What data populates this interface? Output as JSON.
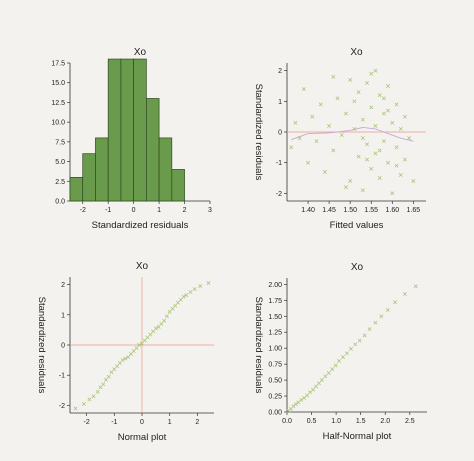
{
  "chart_data": [
    {
      "type": "bar",
      "title": "Xo",
      "xlabel": "Standardized residuals",
      "ylabel": "",
      "xlim": [
        -2.5,
        3
      ],
      "ylim": [
        0,
        17.5
      ],
      "xticks": [
        -2,
        -1,
        0,
        1,
        2,
        3
      ],
      "yticks": [
        0.0,
        2.5,
        5.0,
        7.5,
        10.0,
        12.5,
        15.0,
        17.5
      ],
      "ytick_labels": [
        "0.0",
        "2.5",
        "5.0",
        "7.5",
        "10.0",
        "12.5",
        "15.0",
        "17.5"
      ],
      "bins": [
        [
          -2.5,
          -2.0
        ],
        [
          -2.0,
          -1.5
        ],
        [
          -1.5,
          -1.0
        ],
        [
          -1.0,
          -0.5
        ],
        [
          -0.5,
          0.0
        ],
        [
          0.0,
          0.5
        ],
        [
          0.5,
          1.0
        ],
        [
          1.0,
          1.5
        ],
        [
          1.5,
          2.0
        ]
      ],
      "values": [
        3,
        6,
        8,
        18,
        18,
        18,
        13,
        8,
        4
      ],
      "bar_color": "#6a9a4c"
    },
    {
      "type": "scatter",
      "title": "Xo",
      "xlabel": "Fitted values",
      "ylabel": "Standardized residuals",
      "xlim": [
        1.35,
        1.68
      ],
      "ylim": [
        -2.25,
        2.25
      ],
      "xticks": [
        1.4,
        1.45,
        1.5,
        1.55,
        1.6,
        1.65
      ],
      "xtick_labels": [
        "1.40",
        "1.45",
        "1.50",
        "1.55",
        "1.60",
        "1.65"
      ],
      "yticks": [
        -2,
        -1,
        0,
        1,
        2
      ],
      "reference_line_y": 0,
      "smooth_curve": {
        "x": [
          1.36,
          1.4,
          1.45,
          1.5,
          1.53,
          1.56,
          1.59,
          1.62,
          1.65
        ],
        "y": [
          -0.25,
          -0.05,
          -0.03,
          0.05,
          0.15,
          0.1,
          -0.05,
          -0.2,
          -0.3
        ]
      },
      "points": {
        "x": [
          1.36,
          1.37,
          1.38,
          1.39,
          1.4,
          1.41,
          1.42,
          1.43,
          1.44,
          1.45,
          1.46,
          1.47,
          1.48,
          1.49,
          1.5,
          1.5,
          1.51,
          1.52,
          1.52,
          1.53,
          1.53,
          1.54,
          1.54,
          1.55,
          1.55,
          1.56,
          1.56,
          1.56,
          1.57,
          1.57,
          1.58,
          1.58,
          1.59,
          1.59,
          1.6,
          1.6,
          1.61,
          1.61,
          1.62,
          1.62,
          1.63,
          1.63,
          1.64,
          1.65,
          1.46,
          1.49,
          1.51,
          1.53,
          1.55,
          1.57,
          1.59,
          1.61,
          1.58,
          1.54
        ],
        "y": [
          -0.5,
          0.3,
          -0.2,
          1.4,
          -1.0,
          0.5,
          -0.3,
          0.9,
          -1.3,
          0.2,
          -0.6,
          1.1,
          -0.1,
          0.6,
          -1.6,
          1.7,
          0.1,
          -0.8,
          1.3,
          0.4,
          -1.9,
          1.6,
          -0.4,
          0.8,
          -1.2,
          2.0,
          0.2,
          -0.7,
          1.2,
          -1.5,
          0.6,
          -0.3,
          1.5,
          -1.0,
          0.3,
          -2.0,
          0.9,
          -0.5,
          0.1,
          -1.4,
          0.5,
          -0.9,
          -0.2,
          -1.6,
          1.8,
          -1.8,
          1.0,
          -0.2,
          1.9,
          -0.6,
          0.7,
          -1.1,
          1.1,
          -0.9
        ]
      },
      "point_color": "#a5c26e",
      "line_color": "#e89a88"
    },
    {
      "type": "scatter",
      "title": "Xo",
      "xlabel": "Normal plot",
      "ylabel": "Standardized residuals",
      "xlim": [
        -2.6,
        2.6
      ],
      "ylim": [
        -2.25,
        2.25
      ],
      "xticks": [
        -2,
        -1,
        0,
        1,
        2
      ],
      "yticks": [
        -2,
        -1,
        0,
        1,
        2
      ],
      "reference_line_x": 0,
      "reference_line_y": 0,
      "points": {
        "x": [
          -2.4,
          -2.1,
          -1.9,
          -1.75,
          -1.6,
          -1.5,
          -1.4,
          -1.3,
          -1.2,
          -1.1,
          -1.0,
          -0.9,
          -0.8,
          -0.7,
          -0.6,
          -0.5,
          -0.4,
          -0.3,
          -0.2,
          -0.1,
          0.0,
          0.1,
          0.2,
          0.3,
          0.4,
          0.5,
          0.6,
          0.7,
          0.8,
          0.9,
          1.0,
          1.1,
          1.2,
          1.3,
          1.4,
          1.5,
          1.6,
          1.75,
          1.9,
          2.1,
          2.4
        ],
        "y": [
          -2.1,
          -1.95,
          -1.8,
          -1.7,
          -1.55,
          -1.4,
          -1.3,
          -1.15,
          -1.05,
          -0.9,
          -0.8,
          -0.7,
          -0.6,
          -0.5,
          -0.45,
          -0.4,
          -0.3,
          -0.2,
          -0.1,
          0.0,
          0.05,
          0.15,
          0.25,
          0.35,
          0.45,
          0.55,
          0.6,
          0.7,
          0.8,
          0.95,
          1.1,
          1.2,
          1.3,
          1.4,
          1.5,
          1.6,
          1.65,
          1.75,
          1.85,
          1.95,
          2.05
        ]
      },
      "point_color": "#a5c26e",
      "line_color": "#e89a88"
    },
    {
      "type": "scatter",
      "title": "Xo",
      "xlabel": "Half-Normal plot",
      "ylabel": "Standardized residuals",
      "xlim": [
        0,
        2.85
      ],
      "ylim": [
        0,
        2.1
      ],
      "xticks": [
        0.0,
        0.5,
        1.0,
        1.5,
        2.0,
        2.5
      ],
      "xtick_labels": [
        "0.0",
        "0.5",
        "1.0",
        "1.5",
        "2.0",
        "2.5"
      ],
      "yticks": [
        0.0,
        0.25,
        0.5,
        0.75,
        1.0,
        1.25,
        1.5,
        1.75,
        2.0
      ],
      "ytick_labels": [
        "0.00",
        "0.25",
        "0.50",
        "0.75",
        "1.00",
        "1.25",
        "1.50",
        "1.75",
        "2.00"
      ],
      "points": {
        "x": [
          0.03,
          0.08,
          0.13,
          0.18,
          0.23,
          0.29,
          0.35,
          0.41,
          0.47,
          0.53,
          0.59,
          0.65,
          0.71,
          0.78,
          0.85,
          0.92,
          0.99,
          1.06,
          1.14,
          1.22,
          1.3,
          1.39,
          1.48,
          1.58,
          1.68,
          1.8,
          1.92,
          2.05,
          2.2,
          2.4,
          2.62
        ],
        "y": [
          0.02,
          0.05,
          0.09,
          0.12,
          0.15,
          0.19,
          0.22,
          0.26,
          0.31,
          0.35,
          0.4,
          0.45,
          0.5,
          0.56,
          0.61,
          0.67,
          0.73,
          0.8,
          0.86,
          0.92,
          0.99,
          1.06,
          1.12,
          1.2,
          1.3,
          1.4,
          1.5,
          1.6,
          1.72,
          1.85,
          1.97
        ]
      },
      "point_color": "#a5c26e"
    }
  ]
}
